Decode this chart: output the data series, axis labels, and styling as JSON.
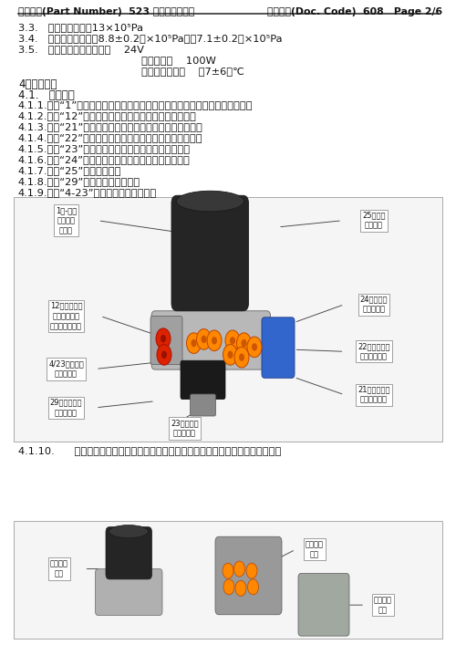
{
  "header_left": "总成图号(Part Number)  523 系列使用说明书",
  "header_right": "文件代码(Doc. Code)  608   Page 2/6",
  "background": "#ffffff",
  "sec33": "3.3.   最高使用压力：13×10⁵Pa",
  "sec34": "3.4.   输出压力范围：（8.8±0.2）×10⁵Pa～（7.1±0.2）×10⁵Pa",
  "sec35": "3.5.   电加热系统：工作电压    24V",
  "sec35b": "加热器功率    100W",
  "sec35c": "温控器接通温度    （7±6）℃",
  "sec4": "4．安装说明",
  "sec41": "4.1.   接口说明",
  "sec411": "4.1.1.标识“1”口为空气干燥器进气口，接空压机出口，两者间必须有冷却管路",
  "sec412": "4.1.2.标识“12”口为增压截止阀（接充气接头或不使用）",
  "sec413": "4.1.3.标识“21”口为四回路出气口，接后桥行车制动储气筒",
  "sec414": "4.1.4.标识“22”口为四回路出气口，接前桥行车制动储气筒",
  "sec415": "4.1.5.标识“23”口为四回路出气口，接驻车制动储气筒",
  "sec416": "4.1.6.标识“24”口为四回路出气口，接辅助制动储气筒",
  "sec417": "4.1.7.标识“25”口通常不使用",
  "sec418": "4.1.8.标识“29”口接空气悬挂储气筒",
  "sec419": "4.1.9.标识“4-23”口接空气压缩机控制口",
  "sec4110": "4.1.10.      干燥器总成可拆分为空气干燥器部分，四回路保护阀部分等，如下图所示：",
  "lbl_1": "1口-进气\n口，连接\n空压机",
  "lbl_12": "12口增压截止\n阀（或充气接\n头或堵头堵住）",
  "lbl_423": "4/23口，接空\n压机控制口",
  "lbl_29": "29口，接空气\n悬架储气筒",
  "lbl_25": "25口通常\n没有开通",
  "lbl_24": "24口接辅助\n制动储气筒",
  "lbl_22": "22口接前桥行\n车制动储气筒",
  "lbl_21": "21口接后桥行\n车制动储气筒",
  "lbl_23": "23口接驻车\n制动储气筒",
  "lbl_dryer": "空干燥器\n总成",
  "lbl_4valve": "四保阀分\n总成",
  "lbl_regvalve": "顺阀阀分\n总成"
}
